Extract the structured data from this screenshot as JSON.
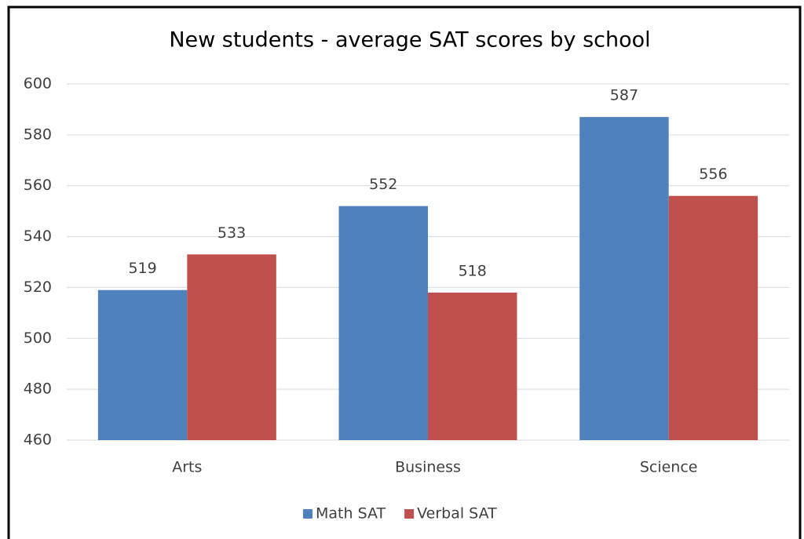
{
  "chart_data": {
    "type": "bar",
    "title": "New students - average SAT scores by school",
    "categories": [
      "Arts",
      "Business",
      "Science"
    ],
    "series": [
      {
        "name": "Math SAT",
        "color": "#4f81bd",
        "values": [
          519,
          552,
          587
        ]
      },
      {
        "name": "Verbal SAT",
        "color": "#c0504d",
        "values": [
          533,
          518,
          556
        ]
      }
    ],
    "ylim": [
      460,
      600
    ],
    "yticks": [
      460,
      480,
      500,
      520,
      540,
      560,
      580,
      600
    ],
    "grid": true,
    "legend": "bottom"
  }
}
